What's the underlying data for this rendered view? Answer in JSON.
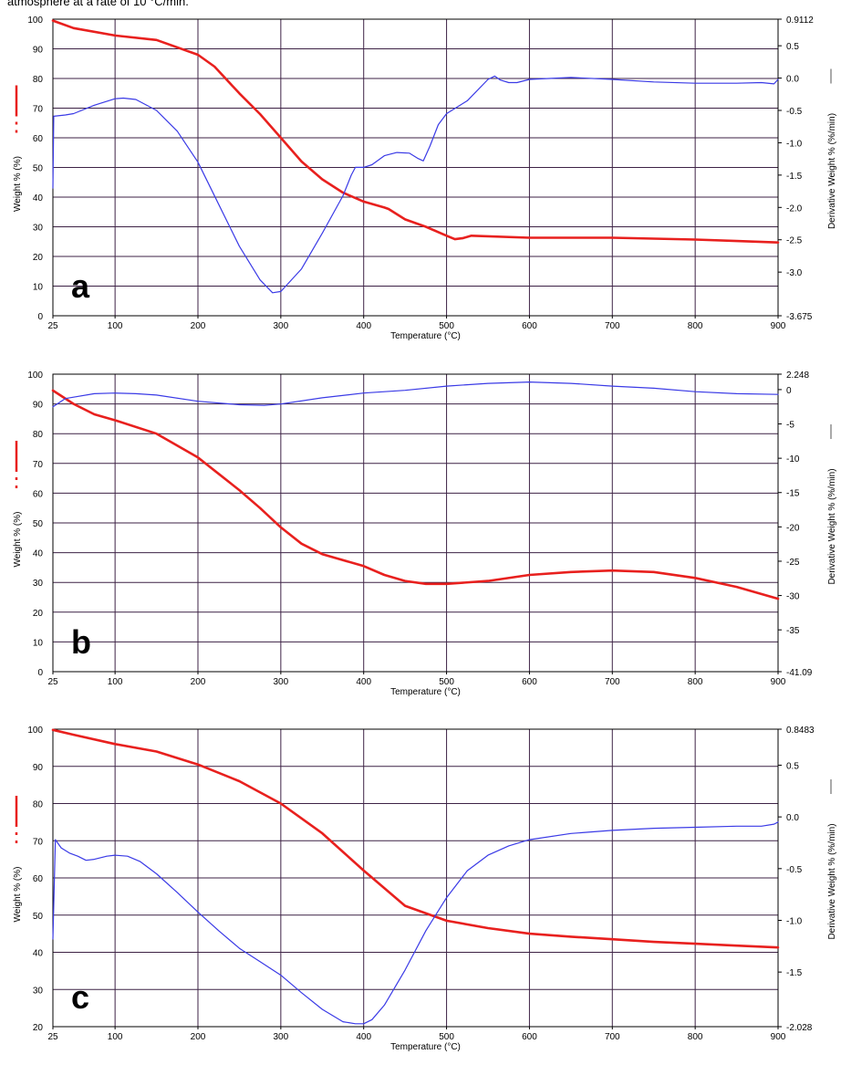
{
  "caption": "atmosphere at a rate of 10 °C/min.",
  "colors": {
    "weight": "#e8201e",
    "derivative": "#3a3ae6",
    "grid": "#3d2245",
    "frame": "#000000",
    "background": "#ffffff"
  },
  "chart_data": [
    {
      "type": "line",
      "panel_label": "a",
      "xlabel": "Temperature (°C)",
      "ylabel": "Weight % (%)",
      "ylabel2": "Derivative Weight % (%/min)",
      "xlim": [
        25,
        900
      ],
      "ylim": [
        0,
        100
      ],
      "y2lim": [
        -3.675,
        0.9112
      ],
      "x_ticks": [
        "25",
        "100",
        "200",
        "300",
        "400",
        "500",
        "600",
        "700",
        "800",
        "900"
      ],
      "y_ticks": [
        "0",
        "10",
        "20",
        "30",
        "40",
        "50",
        "60",
        "70",
        "80",
        "90",
        "100"
      ],
      "y2_ticks": [
        "0.9112",
        "0.5",
        "0.0",
        "-0.5",
        "-1.0",
        "-1.5",
        "-2.0",
        "-2.5",
        "-3.0",
        "-3.675"
      ],
      "grid": true,
      "series": [
        {
          "axis": "left",
          "color": "#e8201e",
          "x": [
            25,
            50,
            100,
            150,
            200,
            220,
            250,
            275,
            300,
            325,
            350,
            375,
            400,
            425,
            430,
            450,
            475,
            500,
            510,
            520,
            530,
            600,
            700,
            800,
            850,
            900
          ],
          "y": [
            99.5,
            97,
            94.5,
            93,
            88,
            84,
            75,
            68,
            60,
            52,
            46,
            41.5,
            38.5,
            36.5,
            36,
            32.5,
            30,
            27,
            25.8,
            26.2,
            27,
            26.3,
            26.3,
            25.7,
            25.2,
            24.7
          ]
        },
        {
          "axis": "right",
          "color": "#3a3ae6",
          "x": [
            25,
            26,
            40,
            50,
            75,
            100,
            110,
            125,
            150,
            175,
            200,
            225,
            250,
            275,
            290,
            300,
            325,
            350,
            375,
            385,
            390,
            400,
            410,
            425,
            440,
            455,
            465,
            472,
            480,
            490,
            500,
            525,
            550,
            558,
            565,
            575,
            585,
            600,
            650,
            700,
            750,
            800,
            850,
            880,
            895,
            900
          ],
          "y": [
            -1.7,
            -0.59,
            -0.57,
            -0.55,
            -0.42,
            -0.32,
            -0.31,
            -0.33,
            -0.5,
            -0.82,
            -1.3,
            -1.95,
            -2.6,
            -3.12,
            -3.32,
            -3.3,
            -2.95,
            -2.4,
            -1.82,
            -1.5,
            -1.38,
            -1.38,
            -1.34,
            -1.2,
            -1.15,
            -1.16,
            -1.24,
            -1.28,
            -1.05,
            -0.72,
            -0.55,
            -0.35,
            -0.02,
            0.03,
            -0.03,
            -0.07,
            -0.07,
            -0.02,
            0.01,
            -0.02,
            -0.06,
            -0.08,
            -0.08,
            -0.07,
            -0.09,
            -0.02
          ]
        }
      ]
    },
    {
      "type": "line",
      "panel_label": "b",
      "xlabel": "Temperature (°C)",
      "ylabel": "Weight % (%)",
      "ylabel2": "Derivative Weight % (%/min)",
      "xlim": [
        25,
        900
      ],
      "ylim": [
        0,
        100
      ],
      "y2lim": [
        -41.09,
        2.248
      ],
      "x_ticks": [
        "25",
        "100",
        "200",
        "300",
        "400",
        "500",
        "600",
        "700",
        "800",
        "900"
      ],
      "y_ticks": [
        "0",
        "10",
        "20",
        "30",
        "40",
        "50",
        "60",
        "70",
        "80",
        "90",
        "100"
      ],
      "y2_ticks": [
        "2.248",
        "0",
        "-5",
        "-10",
        "-15",
        "-20",
        "-25",
        "-30",
        "-35",
        "-41.09"
      ],
      "grid": true,
      "series": [
        {
          "axis": "left",
          "color": "#e8201e",
          "x": [
            25,
            50,
            75,
            100,
            150,
            200,
            225,
            250,
            275,
            300,
            325,
            350,
            400,
            425,
            450,
            475,
            500,
            550,
            600,
            650,
            700,
            750,
            800,
            850,
            900
          ],
          "y": [
            94.5,
            90,
            86.5,
            84.5,
            80,
            72,
            66.5,
            61,
            55,
            48.5,
            43,
            39.5,
            35.5,
            32.5,
            30.5,
            29.5,
            29.5,
            30.5,
            32.5,
            33.5,
            34,
            33.5,
            31.5,
            28.5,
            24.5
          ]
        },
        {
          "axis": "right",
          "color": "#3a3ae6",
          "x": [
            25,
            40,
            50,
            75,
            100,
            125,
            150,
            200,
            250,
            280,
            300,
            350,
            400,
            450,
            500,
            550,
            600,
            650,
            700,
            750,
            800,
            850,
            900
          ],
          "y": [
            -2.5,
            -1.3,
            -1.1,
            -0.6,
            -0.5,
            -0.6,
            -0.8,
            -1.7,
            -2.2,
            -2.3,
            -2.1,
            -1.2,
            -0.5,
            -0.1,
            0.5,
            0.9,
            1.1,
            0.9,
            0.5,
            0.2,
            -0.3,
            -0.6,
            -0.7
          ]
        }
      ]
    },
    {
      "type": "line",
      "panel_label": "c",
      "xlabel": "Temperature (°C)",
      "ylabel": "Weight % (%)",
      "ylabel2": "Derivative Weight % (%/min)",
      "xlim": [
        25,
        900
      ],
      "ylim": [
        20,
        100
      ],
      "y2lim": [
        -2.028,
        0.8483
      ],
      "x_ticks": [
        "25",
        "100",
        "200",
        "300",
        "400",
        "500",
        "600",
        "700",
        "800",
        "900"
      ],
      "y_ticks": [
        "20",
        "30",
        "40",
        "50",
        "60",
        "70",
        "80",
        "90",
        "100"
      ],
      "y2_ticks": [
        "0.8483",
        "0.5",
        "0.0",
        "-0.5",
        "-1.0",
        "-1.5",
        "-2.028"
      ],
      "grid": true,
      "series": [
        {
          "axis": "left",
          "color": "#e8201e",
          "x": [
            25,
            50,
            100,
            150,
            200,
            250,
            300,
            350,
            400,
            450,
            500,
            550,
            600,
            650,
            700,
            750,
            800,
            850,
            900
          ],
          "y": [
            99.8,
            98.5,
            96,
            94,
            90.5,
            86,
            80,
            72,
            62,
            52.5,
            48.5,
            46.5,
            45,
            44.2,
            43.5,
            42.8,
            42.3,
            41.8,
            41.3
          ]
        },
        {
          "axis": "right",
          "color": "#3a3ae6",
          "x": [
            25,
            28,
            35,
            45,
            55,
            65,
            75,
            90,
            100,
            115,
            130,
            150,
            175,
            200,
            225,
            250,
            275,
            300,
            325,
            350,
            375,
            390,
            400,
            410,
            425,
            450,
            475,
            500,
            525,
            550,
            575,
            600,
            650,
            700,
            750,
            800,
            850,
            880,
            895,
            900
          ],
          "y": [
            -1.18,
            -0.22,
            -0.3,
            -0.35,
            -0.38,
            -0.42,
            -0.41,
            -0.38,
            -0.37,
            -0.38,
            -0.43,
            -0.55,
            -0.73,
            -0.92,
            -1.1,
            -1.27,
            -1.4,
            -1.53,
            -1.7,
            -1.86,
            -1.98,
            -2.0,
            -2.0,
            -1.96,
            -1.82,
            -1.48,
            -1.1,
            -0.78,
            -0.52,
            -0.37,
            -0.28,
            -0.22,
            -0.16,
            -0.13,
            -0.11,
            -0.1,
            -0.09,
            -0.09,
            -0.07,
            -0.05
          ]
        }
      ]
    }
  ]
}
